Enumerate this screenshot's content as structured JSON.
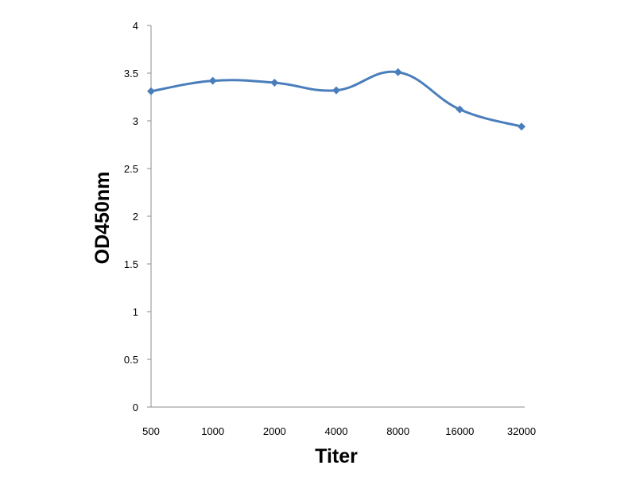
{
  "chart_data": {
    "type": "line",
    "title": "",
    "xlabel": "Titer",
    "ylabel": "OD450nm",
    "categories": [
      "500",
      "1000",
      "2000",
      "4000",
      "8000",
      "16000",
      "32000"
    ],
    "series": [
      {
        "values": [
          3.31,
          3.42,
          3.4,
          3.32,
          3.51,
          3.12,
          2.94
        ],
        "color": "#4a7ebb",
        "marker": "diamond",
        "smooth": true
      }
    ],
    "ylim": [
      0,
      4
    ],
    "yticks": [
      "0",
      "0.5",
      "1",
      "1.5",
      "2",
      "2.5",
      "3",
      "3.5",
      "4"
    ],
    "ytick_values": [
      0,
      0.5,
      1,
      1.5,
      2,
      2.5,
      3,
      3.5,
      4
    ],
    "grid": false,
    "legend": "none"
  }
}
